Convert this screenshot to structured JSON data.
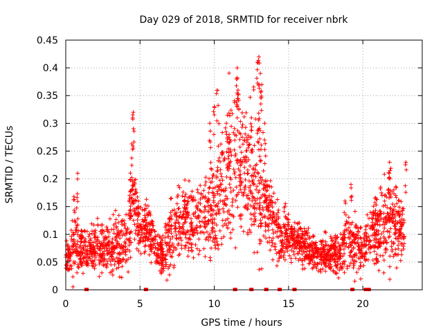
{
  "chart_data": {
    "type": "scatter",
    "title": "Day 029 of 2018, SRMTID for receiver nbrk",
    "xlabel": "GPS time / hours",
    "ylabel": "SRMTID / TECUs",
    "xlim": [
      0,
      24
    ],
    "ylim": [
      0,
      0.45
    ],
    "xticks": [
      0,
      5,
      10,
      15,
      20
    ],
    "xtick_labels": [
      "0",
      "5",
      "10",
      "15",
      "20"
    ],
    "yticks": [
      0,
      0.05,
      0.1,
      0.15,
      0.2,
      0.25,
      0.3,
      0.35,
      0.4,
      0.45
    ],
    "ytick_labels": [
      "0",
      "0.05",
      "0.1",
      "0.15",
      "0.2",
      "0.25",
      "0.3",
      "0.35",
      "0.4",
      "0.45"
    ],
    "grid": true,
    "marker": "+",
    "color": "#ff0000",
    "series": [
      {
        "name": "SRMTID",
        "envelope_x": [
          0,
          0.3,
          0.5,
          1,
          1.5,
          2,
          2.5,
          3,
          3.5,
          4,
          4.2,
          4.5,
          4.7,
          5,
          5.5,
          6,
          6.5,
          7,
          7.5,
          8,
          8.5,
          9,
          9.5,
          10,
          10.5,
          11,
          11.5,
          12,
          12.5,
          13,
          13.5,
          14,
          14.5,
          15,
          15.5,
          16,
          16.5,
          17,
          17.5,
          18,
          18.5,
          19,
          19.5,
          20,
          20.5,
          21,
          21.5,
          22,
          22.5,
          22.8
        ],
        "envelope_y": [
          0.05,
          0.07,
          0.085,
          0.075,
          0.07,
          0.08,
          0.08,
          0.075,
          0.08,
          0.09,
          0.11,
          0.17,
          0.14,
          0.11,
          0.11,
          0.08,
          0.06,
          0.1,
          0.11,
          0.13,
          0.12,
          0.12,
          0.13,
          0.15,
          0.18,
          0.21,
          0.23,
          0.22,
          0.2,
          0.2,
          0.15,
          0.12,
          0.1,
          0.1,
          0.09,
          0.08,
          0.07,
          0.065,
          0.065,
          0.065,
          0.06,
          0.085,
          0.08,
          0.07,
          0.1,
          0.1,
          0.12,
          0.13,
          0.1,
          0.1
        ],
        "envelope_spread": [
          0.02,
          0.04,
          0.06,
          0.035,
          0.03,
          0.035,
          0.04,
          0.04,
          0.04,
          0.04,
          0.05,
          0.08,
          0.06,
          0.04,
          0.035,
          0.03,
          0.035,
          0.05,
          0.05,
          0.055,
          0.05,
          0.055,
          0.06,
          0.08,
          0.09,
          0.11,
          0.1,
          0.09,
          0.1,
          0.11,
          0.06,
          0.05,
          0.04,
          0.035,
          0.03,
          0.03,
          0.025,
          0.025,
          0.025,
          0.025,
          0.03,
          0.05,
          0.04,
          0.035,
          0.04,
          0.05,
          0.06,
          0.07,
          0.05,
          0.04
        ],
        "peaks": [
          {
            "x": 0.8,
            "y": 0.21
          },
          {
            "x": 4.55,
            "y": 0.32
          },
          {
            "x": 4.5,
            "y": 0.31
          },
          {
            "x": 10.2,
            "y": 0.36
          },
          {
            "x": 10.0,
            "y": 0.33
          },
          {
            "x": 11.0,
            "y": 0.28
          },
          {
            "x": 11.55,
            "y": 0.4
          },
          {
            "x": 11.5,
            "y": 0.38
          },
          {
            "x": 11.6,
            "y": 0.36
          },
          {
            "x": 13.0,
            "y": 0.42
          },
          {
            "x": 12.9,
            "y": 0.41
          },
          {
            "x": 13.1,
            "y": 0.39
          },
          {
            "x": 13.2,
            "y": 0.37
          },
          {
            "x": 13.4,
            "y": 0.3
          },
          {
            "x": 12.5,
            "y": 0.31
          },
          {
            "x": 9.7,
            "y": 0.3
          },
          {
            "x": 21.8,
            "y": 0.23
          },
          {
            "x": 22.9,
            "y": 0.23
          },
          {
            "x": 19.2,
            "y": 0.19
          },
          {
            "x": 18.8,
            "y": 0.16
          },
          {
            "x": 21.2,
            "y": 0.185
          }
        ]
      }
    ],
    "gap_markers_x": [
      1.4,
      5.4,
      11.4,
      12.5,
      13.5,
      14.4,
      15.4,
      19.3,
      20.2,
      20.4
    ]
  }
}
